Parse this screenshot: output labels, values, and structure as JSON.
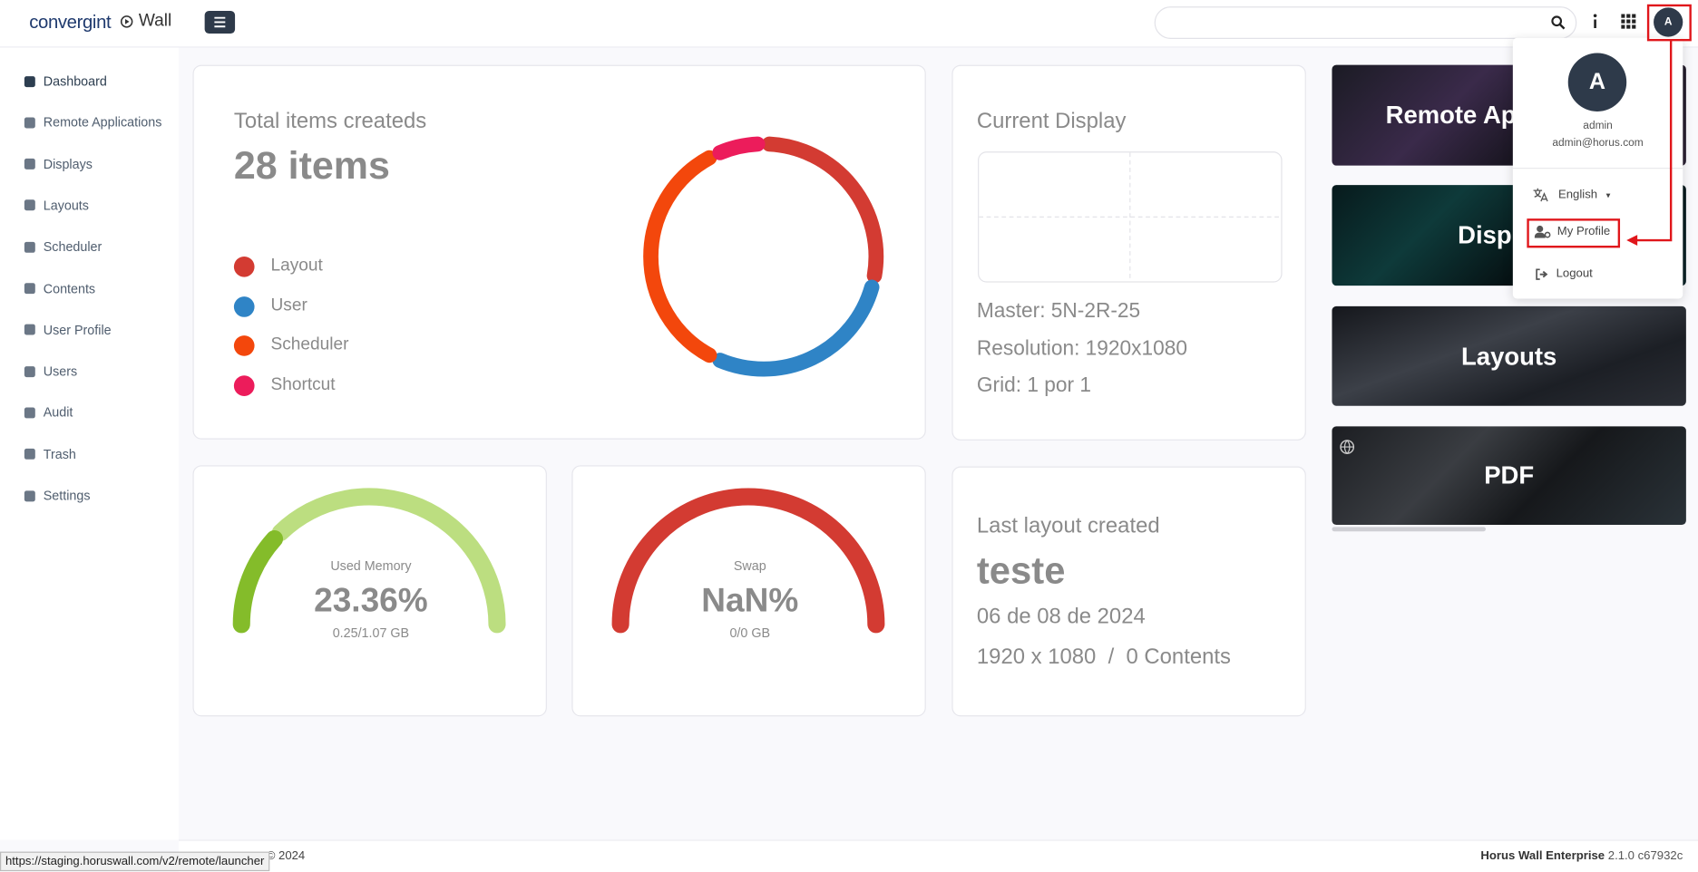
{
  "header": {
    "logo": "convergint",
    "app": "Wall",
    "avatar": "A"
  },
  "sidebar": {
    "items": [
      "Dashboard",
      "Remote Applications",
      "Displays",
      "Layouts",
      "Scheduler",
      "Contents",
      "User Profile",
      "Users",
      "Audit",
      "Trash",
      "Settings"
    ]
  },
  "dashboard": {
    "items_card": {
      "title": "Total items createds",
      "total": "28 items",
      "chart": {
        "type": "donut",
        "series": [
          {
            "name": "Layout",
            "color": "#d33b32",
            "value": 8
          },
          {
            "name": "User",
            "color": "#2f84c6",
            "value": 8
          },
          {
            "name": "Scheduler",
            "color": "#f3470c",
            "value": 10
          },
          {
            "name": "Shortcut",
            "color": "#ec1c5b",
            "value": 2
          }
        ]
      }
    },
    "current_display": {
      "title": "Current Display",
      "master": "Master: 5N-2R-25",
      "resolution": "Resolution: 1920x1080",
      "grid": "Grid: 1 por 1"
    },
    "memory": {
      "type": "gauge",
      "label": "Used Memory",
      "value": 23.36,
      "value_label": "23.36%",
      "range": [
        0,
        100
      ],
      "detail": "0.25/1.07 GB",
      "color": "#84bc2a",
      "track_color": "#bcde80"
    },
    "swap": {
      "type": "gauge",
      "label": "Swap",
      "value_label": "NaN%",
      "detail": "0/0 GB",
      "track_color": "#d33b32"
    },
    "last_layout": {
      "title": "Last layout created",
      "name": "teste",
      "date": "06 de 08 de 2024",
      "size": "1920 x 1080  /  0 Contents"
    }
  },
  "tiles": [
    "Remote Applications",
    "Displays",
    "Layouts",
    "PDF"
  ],
  "user_menu": {
    "avatar": "A",
    "name": "admin",
    "email": "admin@horus.com",
    "language": "English",
    "items": [
      "My Profile",
      "Logout"
    ]
  },
  "footer": {
    "copyright": "© 2024",
    "product": "Horus Wall Enterprise",
    "version": "2.1.0 c67932c"
  },
  "status_url": "https://staging.horuswall.com/v2/remote/launcher"
}
